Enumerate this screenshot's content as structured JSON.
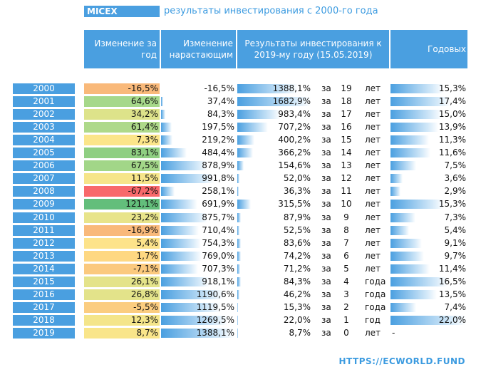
{
  "title": "MICEX",
  "subtitle": "результаты инвестирования с 2000-го года",
  "footer": "HTTPS://ECWORLD.FUND",
  "headers": {
    "change": "Изменение за год",
    "cumulative": "Изменение нарастающим",
    "result": "Результаты инвестирования к 2019-му году (15.05.2019)",
    "annual": "Годовых"
  },
  "za_label": "за",
  "chart_data": {
    "type": "table",
    "rows": [
      {
        "year": "2000",
        "change": "-16,5%",
        "change_value": -16.5,
        "color": "#f9b97a",
        "cumulative": "-16,5%",
        "cum_value": -16.5,
        "result": "1388,1%",
        "result_value": 1388.1,
        "years": "19",
        "unit": "лет",
        "annual": "15,3%",
        "annual_value": 15.3
      },
      {
        "year": "2001",
        "change": "64,6%",
        "change_value": 64.6,
        "color": "#a6d88a",
        "cumulative": "37,4%",
        "cum_value": 37.4,
        "result": "1682,9%",
        "result_value": 1682.9,
        "years": "18",
        "unit": "лет",
        "annual": "17,4%",
        "annual_value": 17.4
      },
      {
        "year": "2002",
        "change": "34,2%",
        "change_value": 34.2,
        "color": "#dde38a",
        "cumulative": "84,3%",
        "cum_value": 84.3,
        "result": "983,4%",
        "result_value": 983.4,
        "years": "17",
        "unit": "лет",
        "annual": "15,0%",
        "annual_value": 15.0
      },
      {
        "year": "2003",
        "change": "61,4%",
        "change_value": 61.4,
        "color": "#aed98a",
        "cumulative": "197,5%",
        "cum_value": 197.5,
        "result": "707,2%",
        "result_value": 707.2,
        "years": "16",
        "unit": "лет",
        "annual": "13,9%",
        "annual_value": 13.9
      },
      {
        "year": "2004",
        "change": "7,3%",
        "change_value": 7.3,
        "color": "#fbe58a",
        "cumulative": "219,2%",
        "cum_value": 219.2,
        "result": "400,2%",
        "result_value": 400.2,
        "years": "15",
        "unit": "лет",
        "annual": "11,3%",
        "annual_value": 11.3
      },
      {
        "year": "2005",
        "change": "83,1%",
        "change_value": 83.1,
        "color": "#8fcf82",
        "cumulative": "484,4%",
        "cum_value": 484.4,
        "result": "366,2%",
        "result_value": 366.2,
        "years": "14",
        "unit": "лет",
        "annual": "11,6%",
        "annual_value": 11.6
      },
      {
        "year": "2006",
        "change": "67,5%",
        "change_value": 67.5,
        "color": "#a2d688",
        "cumulative": "878,9%",
        "cum_value": 878.9,
        "result": "154,6%",
        "result_value": 154.6,
        "years": "13",
        "unit": "лет",
        "annual": "7,5%",
        "annual_value": 7.5
      },
      {
        "year": "2007",
        "change": "11,5%",
        "change_value": 11.5,
        "color": "#f6e58a",
        "cumulative": "991,8%",
        "cum_value": 991.8,
        "result": "52,0%",
        "result_value": 52.0,
        "years": "12",
        "unit": "лет",
        "annual": "3,6%",
        "annual_value": 3.6
      },
      {
        "year": "2008",
        "change": "-67,2%",
        "change_value": -67.2,
        "color": "#f8696b",
        "cumulative": "258,1%",
        "cum_value": 258.1,
        "result": "36,3%",
        "result_value": 36.3,
        "years": "11",
        "unit": "лет",
        "annual": "2,9%",
        "annual_value": 2.9
      },
      {
        "year": "2009",
        "change": "121,1%",
        "change_value": 121.1,
        "color": "#63be7b",
        "cumulative": "691,9%",
        "cum_value": 691.9,
        "result": "315,5%",
        "result_value": 315.5,
        "years": "10",
        "unit": "лет",
        "annual": "15,3%",
        "annual_value": 15.3
      },
      {
        "year": "2010",
        "change": "23,2%",
        "change_value": 23.2,
        "color": "#e8e48a",
        "cumulative": "875,7%",
        "cum_value": 875.7,
        "result": "87,9%",
        "result_value": 87.9,
        "years": "9",
        "unit": "лет",
        "annual": "7,3%",
        "annual_value": 7.3
      },
      {
        "year": "2011",
        "change": "-16,9%",
        "change_value": -16.9,
        "color": "#f9b97a",
        "cumulative": "710,4%",
        "cum_value": 710.4,
        "result": "52,5%",
        "result_value": 52.5,
        "years": "8",
        "unit": "лет",
        "annual": "5,4%",
        "annual_value": 5.4
      },
      {
        "year": "2012",
        "change": "5,4%",
        "change_value": 5.4,
        "color": "#fde38a",
        "cumulative": "754,3%",
        "cum_value": 754.3,
        "result": "83,6%",
        "result_value": 83.6,
        "years": "7",
        "unit": "лет",
        "annual": "9,1%",
        "annual_value": 9.1
      },
      {
        "year": "2013",
        "change": "1,7%",
        "change_value": 1.7,
        "color": "#fed882",
        "cumulative": "769,0%",
        "cum_value": 769.0,
        "result": "74,2%",
        "result_value": 74.2,
        "years": "6",
        "unit": "лет",
        "annual": "9,7%",
        "annual_value": 9.7
      },
      {
        "year": "2014",
        "change": "-7,1%",
        "change_value": -7.1,
        "color": "#fbc97e",
        "cumulative": "707,3%",
        "cum_value": 707.3,
        "result": "71,2%",
        "result_value": 71.2,
        "years": "5",
        "unit": "лет",
        "annual": "11,4%",
        "annual_value": 11.4
      },
      {
        "year": "2015",
        "change": "26,1%",
        "change_value": 26.1,
        "color": "#e4e38a",
        "cumulative": "918,1%",
        "cum_value": 918.1,
        "result": "84,3%",
        "result_value": 84.3,
        "years": "4",
        "unit": "года",
        "annual": "16,5%",
        "annual_value": 16.5
      },
      {
        "year": "2016",
        "change": "26,8%",
        "change_value": 26.8,
        "color": "#e3e38a",
        "cumulative": "1190,6%",
        "cum_value": 1190.6,
        "result": "46,2%",
        "result_value": 46.2,
        "years": "3",
        "unit": "года",
        "annual": "13,5%",
        "annual_value": 13.5
      },
      {
        "year": "2017",
        "change": "-5,5%",
        "change_value": -5.5,
        "color": "#fbcd80",
        "cumulative": "1119,5%",
        "cum_value": 1119.5,
        "result": "15,3%",
        "result_value": 15.3,
        "years": "2",
        "unit": "года",
        "annual": "7,4%",
        "annual_value": 7.4
      },
      {
        "year": "2018",
        "change": "12,3%",
        "change_value": 12.3,
        "color": "#f4e58a",
        "cumulative": "1269,5%",
        "cum_value": 1269.5,
        "result": "22,0%",
        "result_value": 22.0,
        "years": "1",
        "unit": "год",
        "annual": "22,0%",
        "annual_value": 22.0
      },
      {
        "year": "2019",
        "change": "8,7%",
        "change_value": 8.7,
        "color": "#f9e58a",
        "cumulative": "1388,1%",
        "cum_value": 1388.1,
        "result": "8,7%",
        "result_value": 8.7,
        "years": "0",
        "unit": "лет",
        "annual": "-",
        "annual_value": 0
      }
    ]
  }
}
